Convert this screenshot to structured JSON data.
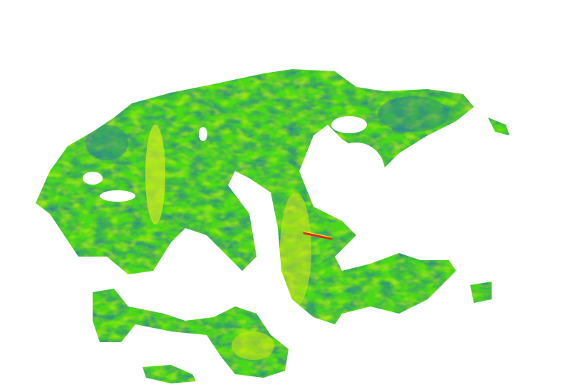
{
  "colors": {
    "background": "#ffffff",
    "low": "#2a7f9a",
    "mid_low": "#1fae6a",
    "mid": "#3fdc1a",
    "high": "#b8ec10",
    "peak": "#f2e41a",
    "extreme": "#e3261c"
  }
}
